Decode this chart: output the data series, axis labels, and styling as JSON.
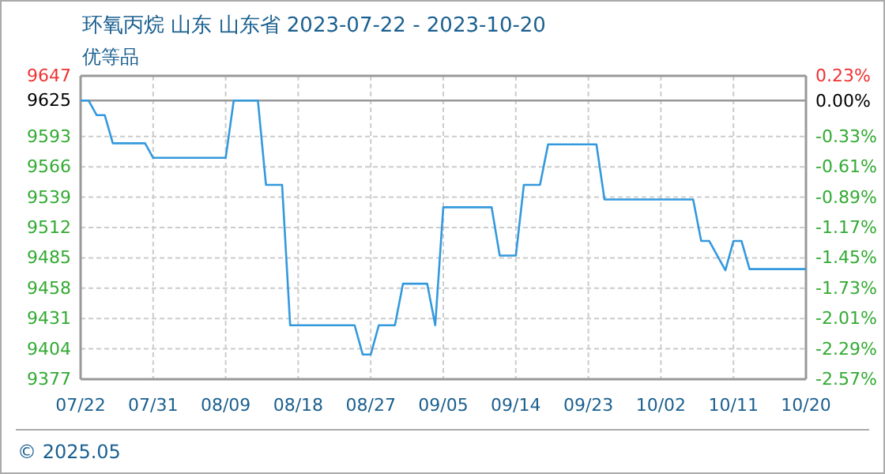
{
  "chart_data": {
    "type": "line",
    "title": "环氧丙烷 山东 山东省 2023-07-22 - 2023-10-20",
    "subtitle": "优等品",
    "annotations": [
      "© 2025.05"
    ],
    "x": [
      "2023-07-22",
      "2023-07-23",
      "2023-07-24",
      "2023-07-25",
      "2023-07-26",
      "2023-07-30",
      "2023-07-31",
      "2023-08-09",
      "2023-08-10",
      "2023-08-13",
      "2023-08-14",
      "2023-08-16",
      "2023-08-17",
      "2023-08-25",
      "2023-08-26",
      "2023-08-27",
      "2023-08-28",
      "2023-08-30",
      "2023-08-31",
      "2023-09-03",
      "2023-09-04",
      "2023-09-05",
      "2023-09-11",
      "2023-09-12",
      "2023-09-14",
      "2023-09-15",
      "2023-09-17",
      "2023-09-18",
      "2023-09-24",
      "2023-09-25",
      "2023-10-06",
      "2023-10-07",
      "2023-10-08",
      "2023-10-10",
      "2023-10-11",
      "2023-10-12",
      "2023-10-13",
      "2023-10-20"
    ],
    "series": [
      {
        "color": "#3399dd",
        "values": [
          9625,
          9625,
          9612,
          9612,
          9587,
          9587,
          9574,
          9574,
          9625,
          9625,
          9550,
          9550,
          9425,
          9425,
          9399,
          9399,
          9425,
          9425,
          9462,
          9462,
          9425,
          9530,
          9530,
          9487,
          9487,
          9550,
          9550,
          9586,
          9586,
          9537,
          9537,
          9500,
          9500,
          9474,
          9500,
          9500,
          9475,
          9475
        ]
      }
    ],
    "xlim": [
      "2023-07-22",
      "2023-10-20"
    ],
    "xticks": [
      {
        "value": "2023-07-22",
        "label": "07/22"
      },
      {
        "value": "2023-07-31",
        "label": "07/31"
      },
      {
        "value": "2023-08-09",
        "label": "08/09"
      },
      {
        "value": "2023-08-18",
        "label": "08/18"
      },
      {
        "value": "2023-08-27",
        "label": "08/27"
      },
      {
        "value": "2023-09-05",
        "label": "09/05"
      },
      {
        "value": "2023-09-14",
        "label": "09/14"
      },
      {
        "value": "2023-09-23",
        "label": "09/23"
      },
      {
        "value": "2023-10-02",
        "label": "10/02"
      },
      {
        "value": "2023-10-11",
        "label": "10/11"
      },
      {
        "value": "2023-10-20",
        "label": "10/20"
      }
    ],
    "ylim": [
      9377,
      9647
    ],
    "yticks": [
      9377,
      9404,
      9431,
      9458,
      9485,
      9512,
      9539,
      9566,
      9593,
      9625,
      9647
    ],
    "y2lim": [
      -2.57,
      0.23
    ],
    "y2ticks": [
      {
        "value": -2.57,
        "label": "-2.57%"
      },
      {
        "value": -2.29,
        "label": "-2.29%"
      },
      {
        "value": -2.01,
        "label": "-2.01%"
      },
      {
        "value": -1.73,
        "label": "-1.73%"
      },
      {
        "value": -1.45,
        "label": "-1.45%"
      },
      {
        "value": -1.17,
        "label": "-1.17%"
      },
      {
        "value": -0.89,
        "label": "-0.89%"
      },
      {
        "value": -0.61,
        "label": "-0.61%"
      },
      {
        "value": -0.33,
        "label": "-0.33%"
      },
      {
        "value": 0,
        "label": "0.00%"
      },
      {
        "value": 0.23,
        "label": "0.23%"
      }
    ],
    "ref_lines": [
      {
        "axis": "y",
        "value": 9625,
        "color": "#999999"
      }
    ],
    "grid": true,
    "line_style": "solid",
    "marker": "none"
  }
}
